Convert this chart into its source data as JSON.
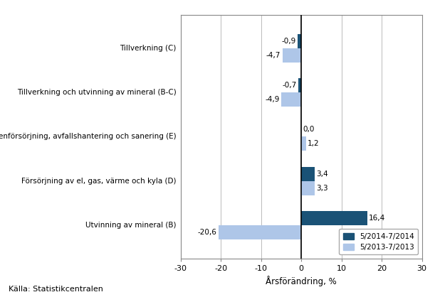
{
  "categories": [
    "Utvinning av mineral (B)",
    "Försörjning av el, gas, värme och kyla (D)",
    "Vattenförsörjning, avfallshantering och sanering (E)",
    "Tillverkning och utvinning av mineral (B-C)",
    "Tillverkning (C)"
  ],
  "series1_values": [
    16.4,
    3.4,
    0.0,
    -0.7,
    -0.9
  ],
  "series2_values": [
    -20.6,
    3.3,
    1.2,
    -4.9,
    -4.7
  ],
  "series1_label": "5/2014-7/2014",
  "series2_label": "5/2013-7/2013",
  "series1_color": "#1a5276",
  "series2_color": "#aec6e8",
  "xlabel": "Årsförändring, %",
  "xlim": [
    -30,
    30
  ],
  "xticks": [
    -30,
    -20,
    -10,
    0,
    10,
    20,
    30
  ],
  "source": "Källa: Statistikcentralen",
  "bar_height": 0.32,
  "background_color": "#ffffff",
  "grid_color": "#bbbbbb"
}
